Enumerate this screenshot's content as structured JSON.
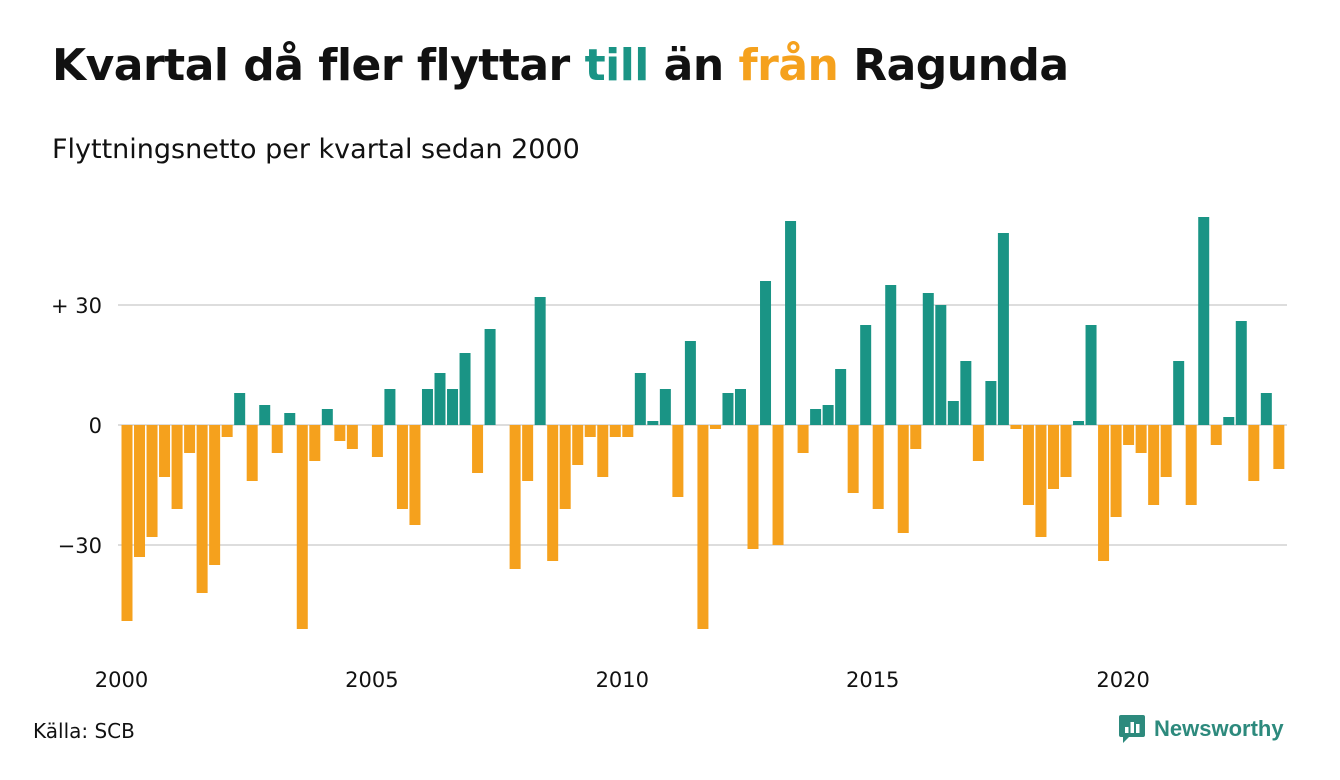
{
  "title": {
    "part1": "Kvartal då fler flyttar ",
    "in_word": "till",
    "part2": " än ",
    "out_word": "från",
    "part3": " Ragunda"
  },
  "subtitle": "Flyttningsnetto per kvartal sedan 2000",
  "source": "Källa: SCB",
  "brand": "Newsworthy",
  "colors": {
    "in": "#1a9485",
    "out": "#f5a11d",
    "grid": "#dddddd"
  },
  "chart_data": {
    "type": "bar",
    "y_ticks": [
      {
        "value": 30,
        "label": "+ 30"
      },
      {
        "value": 0,
        "label": "0"
      },
      {
        "value": -30,
        "label": "−30"
      }
    ],
    "x_ticks": [
      {
        "label": "2000",
        "year": 2000
      },
      {
        "label": "2005",
        "year": 2005
      },
      {
        "label": "2010",
        "year": 2010
      },
      {
        "label": "2015",
        "year": 2015
      },
      {
        "label": "2020",
        "year": 2020
      }
    ],
    "ylim": [
      -56,
      53
    ],
    "grid": true,
    "start_year": 2000,
    "values": [
      -49,
      -33,
      -28,
      -13,
      -21,
      -7,
      -42,
      -35,
      -3,
      8,
      -14,
      5,
      -7,
      3,
      -51,
      -9,
      4,
      -4,
      -6,
      0,
      -8,
      9,
      -21,
      -25,
      9,
      13,
      9,
      18,
      -12,
      24,
      0,
      -36,
      -14,
      32,
      -34,
      -21,
      -10,
      -3,
      -13,
      -3,
      -3,
      13,
      1,
      9,
      -18,
      21,
      -51,
      -1,
      8,
      9,
      -31,
      36,
      -30,
      51,
      -7,
      4,
      5,
      14,
      -17,
      25,
      -21,
      35,
      -27,
      -6,
      33,
      30,
      6,
      16,
      -9,
      11,
      48,
      -1,
      -20,
      -28,
      -16,
      -13,
      1,
      25,
      -34,
      -23,
      -5,
      -7,
      -20,
      -13,
      16,
      -20,
      52,
      -5,
      2,
      26,
      -14,
      8,
      -11
    ]
  }
}
